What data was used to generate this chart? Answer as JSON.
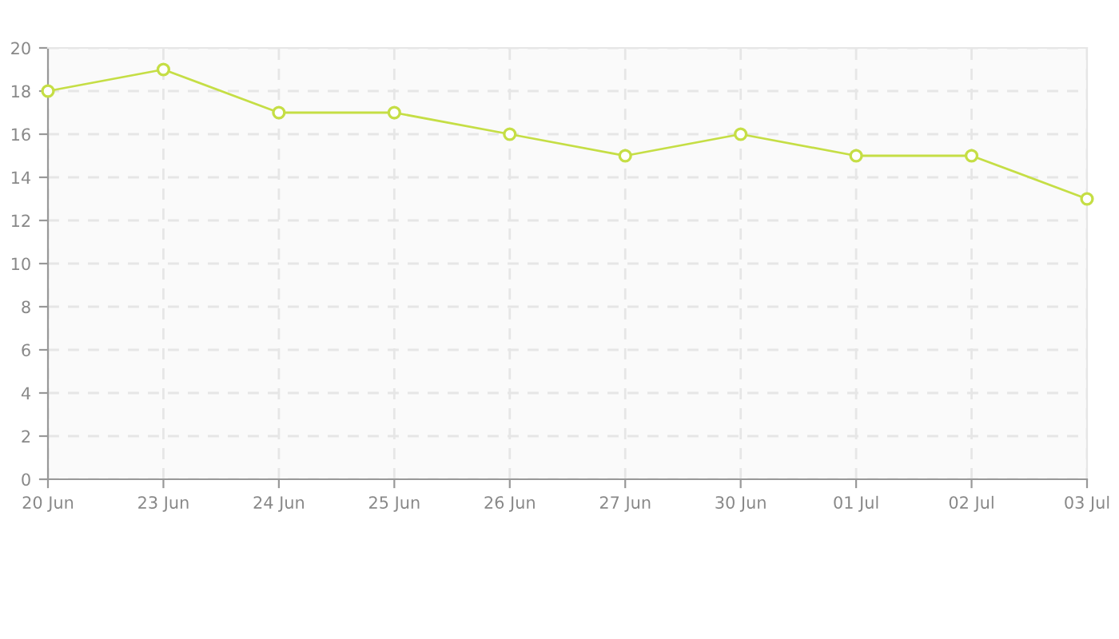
{
  "chart_data": {
    "type": "line",
    "categories": [
      "20 Jun",
      "23 Jun",
      "24 Jun",
      "25 Jun",
      "26 Jun",
      "27 Jun",
      "30 Jun",
      "01 Jul",
      "02 Jul",
      "03 Jul"
    ],
    "series": [
      {
        "color": "#c5de45",
        "values": [
          18,
          19,
          17,
          17,
          16,
          15,
          16,
          15,
          15,
          13
        ]
      }
    ],
    "ylim": [
      0,
      20
    ],
    "yticks": [
      0,
      2,
      4,
      6,
      8,
      10,
      12,
      14,
      16,
      18,
      20
    ],
    "grid": true,
    "marker": "circle",
    "line_style": "solid",
    "legend": false
  }
}
